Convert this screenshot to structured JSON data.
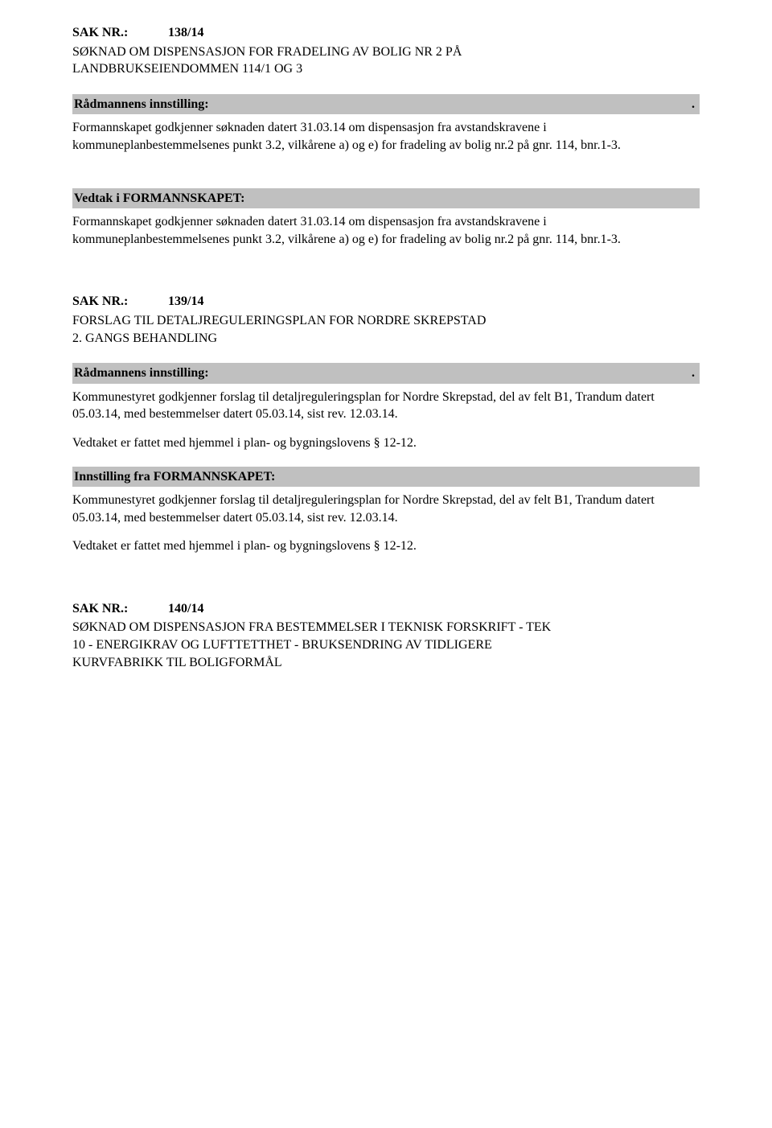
{
  "sak138": {
    "label": "SAK NR.:",
    "number": "138/14",
    "title_line1": "SØKNAD OM DISPENSASJON FOR FRADELING AV BOLIG NR 2 PÅ",
    "title_line2": "LANDBRUKSEIENDOMMEN 114/1 OG 3",
    "radmannen_heading": "Rådmannens innstilling:",
    "dot": ".",
    "body1": "Formannskapet godkjenner søknaden datert 31.03.14 om dispensasjon fra avstandskravene i kommuneplanbestemmelsenes punkt 3.2, vilkårene a) og e) for fradeling av bolig nr.2 på gnr. 114, bnr.1-3.",
    "vedtak_heading": "Vedtak i FORMANNSKAPET:",
    "body2": "Formannskapet godkjenner søknaden datert 31.03.14 om dispensasjon fra avstandskravene i kommuneplanbestemmelsenes punkt 3.2, vilkårene a) og e) for fradeling av bolig nr.2 på gnr. 114, bnr.1-3."
  },
  "sak139": {
    "label": "SAK NR.:",
    "number": "139/14",
    "title_line1": "FORSLAG TIL DETALJREGULERINGSPLAN FOR NORDRE SKREPSTAD",
    "title_line2": "2. GANGS BEHANDLING",
    "radmannen_heading": "Rådmannens innstilling:",
    "dot": ".",
    "body1": "Kommunestyret godkjenner forslag til detaljreguleringsplan for Nordre Skrepstad, del av felt B1, Trandum datert 05.03.14, med bestemmelser datert 05.03.14, sist rev. 12.03.14.",
    "body2": "Vedtaket er fattet med hjemmel i plan- og bygningslovens § 12-12.",
    "innstilling_heading": "Innstilling fra FORMANNSKAPET:",
    "body3": "Kommunestyret godkjenner forslag til detaljreguleringsplan for Nordre Skrepstad, del av felt B1, Trandum datert 05.03.14, med bestemmelser datert 05.03.14, sist rev. 12.03.14.",
    "body4": "Vedtaket er fattet med hjemmel i plan- og bygningslovens § 12-12."
  },
  "sak140": {
    "label": "SAK NR.:",
    "number": "140/14",
    "title_line1": "SØKNAD OM DISPENSASJON FRA BESTEMMELSER I TEKNISK FORSKRIFT - TEK",
    "title_line2": "10 - ENERGIKRAV OG LUFTTETTHET - BRUKSENDRING AV TIDLIGERE",
    "title_line3": "KURVFABRIKK TIL BOLIGFORMÅL"
  }
}
